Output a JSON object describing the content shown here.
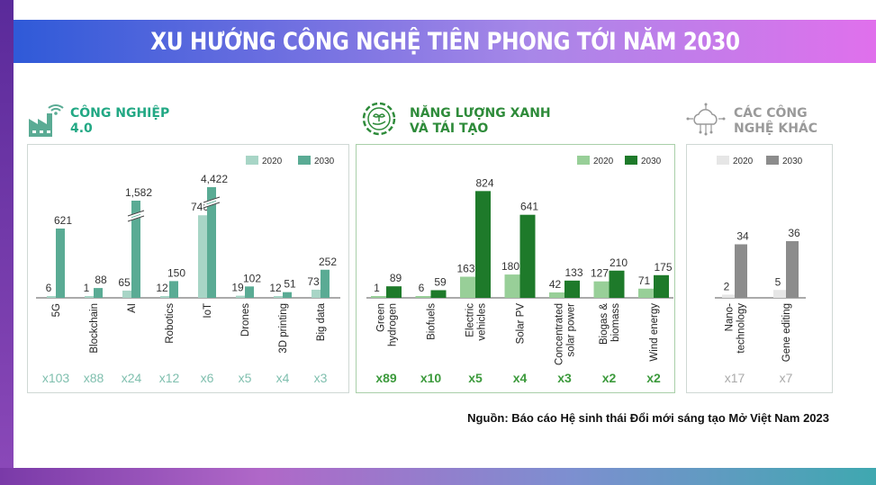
{
  "title": "XU HƯỚNG CÔNG NGHỆ TIÊN PHONG TỚI NĂM 2030",
  "source": "Nguồn: Báo cáo Hệ sinh thái Đổi mới sáng tạo Mở Việt Nam 2023",
  "sections": [
    {
      "title_line1": "CÔNG NGHIỆP",
      "title_line2": "4.0",
      "icon": "factory-wifi-icon",
      "title_color": "#22a884"
    },
    {
      "title_line1": "NĂNG LƯỢNG XANH",
      "title_line2": "VÀ TÁI TẠO",
      "icon": "gear-leaf-hand-icon",
      "title_color": "#2e8b3a"
    },
    {
      "title_line1": "CÁC CÔNG",
      "title_line2": "NGHỆ KHÁC",
      "icon": "cloud-network-icon",
      "title_color": "#9a9a9a"
    }
  ],
  "chart_data": [
    {
      "type": "bar",
      "legend": [
        "2020",
        "2030"
      ],
      "legend_placement": "top-right",
      "colors": [
        "#a8d5c6",
        "#5aab94"
      ],
      "axis_break": true,
      "categories": [
        [
          "5G"
        ],
        [
          "Blockchain"
        ],
        [
          "AI"
        ],
        [
          "Robotics"
        ],
        [
          "IoT"
        ],
        [
          "Drones"
        ],
        [
          "3D printing"
        ],
        [
          "Big data"
        ]
      ],
      "series": [
        {
          "name": "2020",
          "values": [
            6,
            1,
            65,
            12,
            740,
            19,
            12,
            73
          ],
          "labels": [
            "6",
            "1",
            "65",
            "12",
            "740",
            "19",
            "12",
            "73"
          ]
        },
        {
          "name": "2030",
          "values": [
            621,
            88,
            1582,
            150,
            4422,
            102,
            51,
            252
          ],
          "labels": [
            "621",
            "88",
            "1,582",
            "150",
            "4,422",
            "102",
            "51",
            "252"
          ]
        }
      ],
      "multipliers": [
        "x103",
        "x88",
        "x24",
        "x12",
        "x6",
        "x5",
        "x4",
        "x3"
      ],
      "multiplier_color": "#7fbfae"
    },
    {
      "type": "bar",
      "legend": [
        "2020",
        "2030"
      ],
      "legend_placement": "top-right",
      "colors": [
        "#98cf98",
        "#1e7a2a"
      ],
      "categories": [
        [
          "Green",
          "hydrogen"
        ],
        [
          "Biofuels"
        ],
        [
          "Electric",
          "vehicles"
        ],
        [
          "Solar PV"
        ],
        [
          "Concentrated",
          "solar power"
        ],
        [
          "Biogas &",
          "biomass"
        ],
        [
          "Wind energy"
        ]
      ],
      "series": [
        {
          "name": "2020",
          "values": [
            1,
            6,
            163,
            180,
            42,
            127,
            71
          ],
          "labels": [
            "1",
            "6",
            "163",
            "180",
            "42",
            "127",
            "71"
          ]
        },
        {
          "name": "2030",
          "values": [
            89,
            59,
            824,
            641,
            133,
            210,
            175
          ],
          "labels": [
            "89",
            "59",
            "824",
            "641",
            "133",
            "210",
            "175"
          ]
        }
      ],
      "multipliers": [
        "x89",
        "x10",
        "x5",
        "x4",
        "x3",
        "x2",
        "x2"
      ],
      "multiplier_color": "#3c9a3c"
    },
    {
      "type": "bar",
      "legend": [
        "2020",
        "2030"
      ],
      "legend_placement": "top",
      "colors": [
        "#e6e6e6",
        "#8c8c8c"
      ],
      "categories": [
        [
          "Nano-",
          "technology"
        ],
        [
          "Gene editing"
        ]
      ],
      "series": [
        {
          "name": "2020",
          "values": [
            2,
            5
          ],
          "labels": [
            "2",
            "5"
          ]
        },
        {
          "name": "2030",
          "values": [
            34,
            36
          ],
          "labels": [
            "34",
            "36"
          ]
        }
      ],
      "multipliers": [
        "x17",
        "x7"
      ],
      "multiplier_color": "#aaaaaa"
    }
  ]
}
